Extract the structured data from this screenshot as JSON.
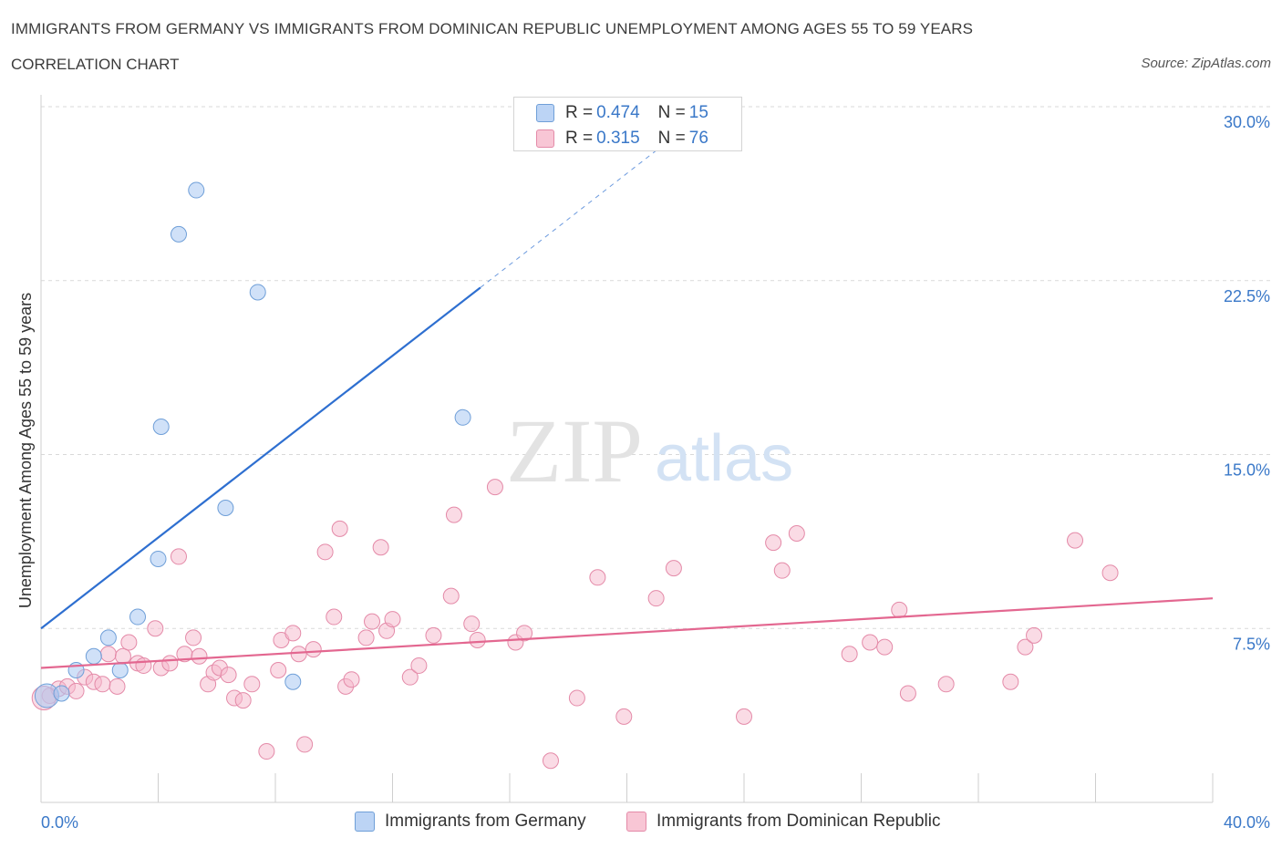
{
  "header": {
    "title": "IMMIGRANTS FROM GERMANY VS IMMIGRANTS FROM DOMINICAN REPUBLIC UNEMPLOYMENT AMONG AGES 55 TO 59 YEARS",
    "subtitle": "CORRELATION CHART",
    "source": "Source: ZipAtlas.com"
  },
  "stats_legend": {
    "germany": {
      "r_label": "R = ",
      "r_value": "0.474",
      "n_label": "N = ",
      "n_value": "15"
    },
    "dominican": {
      "r_label": "R = ",
      "r_value": "0.315",
      "n_label": "N = ",
      "n_value": "76"
    }
  },
  "colors": {
    "germany_fill": "#a9c8f2",
    "germany_stroke": "#6f9fd8",
    "germany_line": "#2e6fd0",
    "dominican_fill": "#f6b8cb",
    "dominican_stroke": "#e48aa8",
    "dominican_line": "#e36790",
    "axis_text": "#3a78c8",
    "grid": "#d9d9d9"
  },
  "watermark": {
    "zip": "ZIP",
    "atlas": "atlas"
  },
  "chart_data": {
    "type": "scatter",
    "title": "IMMIGRANTS FROM GERMANY VS IMMIGRANTS FROM DOMINICAN REPUBLIC UNEMPLOYMENT AMONG AGES 55 TO 59 YEARS",
    "xlabel": "",
    "ylabel": "Unemployment Among Ages 55 to 59 years",
    "xlim": [
      0,
      40
    ],
    "ylim": [
      0,
      30
    ],
    "x_tick_labels": [
      "0.0%",
      "40.0%"
    ],
    "y_ticks": [
      7.5,
      15.0,
      22.5,
      30.0
    ],
    "y_tick_labels": [
      "7.5%",
      "15.0%",
      "22.5%",
      "30.0%"
    ],
    "grid": "horizontal dashed",
    "legend_position": "top-center and bottom",
    "series": [
      {
        "name": "Immigrants from Germany",
        "points": [
          [
            0.2,
            4.6
          ],
          [
            0.7,
            4.7
          ],
          [
            1.2,
            5.7
          ],
          [
            1.8,
            6.3
          ],
          [
            2.3,
            7.1
          ],
          [
            2.7,
            5.7
          ],
          [
            3.3,
            8.0
          ],
          [
            4.0,
            10.5
          ],
          [
            4.1,
            16.2
          ],
          [
            4.7,
            24.5
          ],
          [
            5.3,
            26.4
          ],
          [
            6.3,
            12.7
          ],
          [
            7.4,
            22.0
          ],
          [
            8.6,
            5.2
          ],
          [
            14.4,
            16.6
          ]
        ],
        "trendline": {
          "x": [
            0,
            15.0
          ],
          "y": [
            7.5,
            22.2
          ],
          "dashed_extension": {
            "x": [
              15.0,
              21.5
            ],
            "y": [
              22.2,
              28.6
            ]
          }
        }
      },
      {
        "name": "Immigrants from Dominican Republic",
        "points": [
          [
            0.3,
            4.6
          ],
          [
            0.6,
            4.9
          ],
          [
            0.9,
            5.0
          ],
          [
            1.2,
            4.8
          ],
          [
            1.5,
            5.4
          ],
          [
            1.8,
            5.2
          ],
          [
            2.1,
            5.1
          ],
          [
            2.3,
            6.4
          ],
          [
            2.6,
            5.0
          ],
          [
            2.8,
            6.3
          ],
          [
            3.0,
            6.9
          ],
          [
            3.3,
            6.0
          ],
          [
            3.5,
            5.9
          ],
          [
            3.9,
            7.5
          ],
          [
            4.1,
            5.8
          ],
          [
            4.4,
            6.0
          ],
          [
            4.7,
            10.6
          ],
          [
            4.9,
            6.4
          ],
          [
            5.2,
            7.1
          ],
          [
            5.4,
            6.3
          ],
          [
            5.7,
            5.1
          ],
          [
            5.9,
            5.6
          ],
          [
            6.1,
            5.8
          ],
          [
            6.4,
            5.5
          ],
          [
            6.6,
            4.5
          ],
          [
            6.9,
            4.4
          ],
          [
            7.2,
            5.1
          ],
          [
            7.7,
            2.2
          ],
          [
            8.1,
            5.7
          ],
          [
            8.2,
            7.0
          ],
          [
            8.6,
            7.3
          ],
          [
            8.8,
            6.4
          ],
          [
            9.0,
            2.5
          ],
          [
            9.3,
            6.6
          ],
          [
            9.7,
            10.8
          ],
          [
            10.0,
            8.0
          ],
          [
            10.2,
            11.8
          ],
          [
            10.4,
            5.0
          ],
          [
            10.6,
            5.3
          ],
          [
            11.1,
            7.1
          ],
          [
            11.3,
            7.8
          ],
          [
            11.6,
            11.0
          ],
          [
            11.8,
            7.4
          ],
          [
            12.0,
            7.9
          ],
          [
            12.6,
            5.4
          ],
          [
            12.9,
            5.9
          ],
          [
            13.4,
            7.2
          ],
          [
            14.0,
            8.9
          ],
          [
            14.1,
            12.4
          ],
          [
            14.7,
            7.7
          ],
          [
            14.9,
            7.0
          ],
          [
            15.5,
            13.6
          ],
          [
            16.2,
            6.9
          ],
          [
            16.5,
            7.3
          ],
          [
            17.4,
            1.8
          ],
          [
            18.3,
            4.5
          ],
          [
            19.0,
            9.7
          ],
          [
            19.9,
            3.7
          ],
          [
            21.0,
            8.8
          ],
          [
            21.6,
            10.1
          ],
          [
            24.0,
            3.7
          ],
          [
            25.0,
            11.2
          ],
          [
            25.3,
            10.0
          ],
          [
            25.8,
            11.6
          ],
          [
            27.6,
            6.4
          ],
          [
            28.3,
            6.9
          ],
          [
            28.8,
            6.7
          ],
          [
            29.3,
            8.3
          ],
          [
            29.6,
            4.7
          ],
          [
            30.9,
            5.1
          ],
          [
            33.1,
            5.2
          ],
          [
            33.6,
            6.7
          ],
          [
            33.9,
            7.2
          ],
          [
            35.3,
            11.3
          ],
          [
            36.5,
            9.9
          ],
          [
            0.1,
            4.5
          ]
        ],
        "trendline": {
          "x": [
            0,
            40
          ],
          "y": [
            5.8,
            8.8
          ]
        }
      }
    ]
  }
}
